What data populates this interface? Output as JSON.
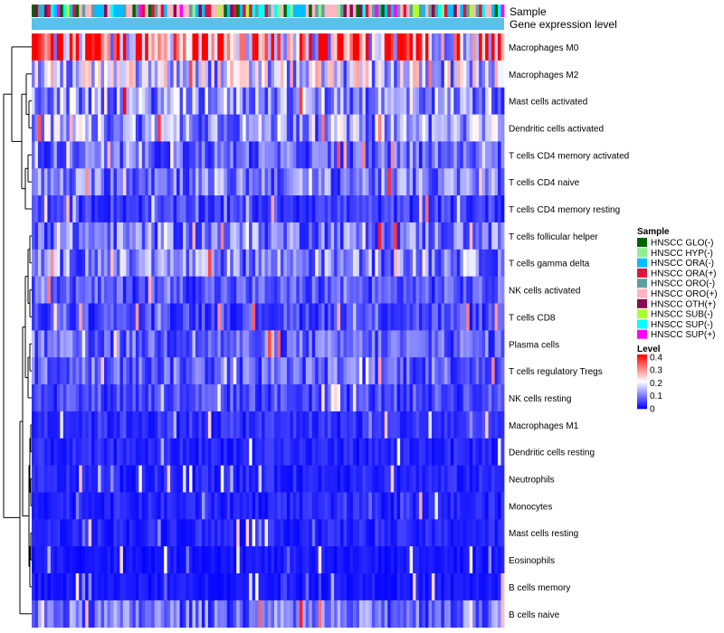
{
  "chart_data": {
    "type": "heatmap",
    "annotation_tracks": [
      "Sample",
      "Gene expression level"
    ],
    "rows": [
      "Macrophages M0",
      "Macrophages M2",
      "Mast cells activated",
      "Dendritic cells activated",
      "T cells CD4 memory activated",
      "T cells CD4 naive",
      "T cells CD4 memory resting",
      "T cells follicular helper",
      "T cells gamma delta",
      "NK cells activated",
      "T cells CD8",
      "Plasma cells",
      "T cells regulatory  Tregs",
      "NK cells resting",
      "Macrophages M1",
      "Dendritic cells resting",
      "Neutrophils",
      "Monocytes",
      "Mast cells resting",
      "Eosinophils",
      "B cells memory",
      "B cells naive"
    ],
    "row_mean_levels": [
      0.32,
      0.16,
      0.12,
      0.13,
      0.08,
      0.1,
      0.05,
      0.1,
      0.11,
      0.07,
      0.06,
      0.08,
      0.08,
      0.06,
      0.04,
      0.03,
      0.03,
      0.03,
      0.03,
      0.02,
      0.02,
      0.09
    ],
    "legend_sample": {
      "title": "Sample",
      "items": [
        {
          "label": "HNSCC GLO(-)",
          "color": "#006400"
        },
        {
          "label": "HNSCC HYP(-)",
          "color": "#90EE90"
        },
        {
          "label": "HNSCC ORA(-)",
          "color": "#00BFFF"
        },
        {
          "label": "HNSCC ORA(+)",
          "color": "#DC143C"
        },
        {
          "label": "HNSCC ORO(-)",
          "color": "#5F9EA0"
        },
        {
          "label": "HNSCC ORO(+)",
          "color": "#FFB6C1"
        },
        {
          "label": "HNSCC OTH(+)",
          "color": "#8B0A50"
        },
        {
          "label": "HNSCC SUB(-)",
          "color": "#ADFF2F"
        },
        {
          "label": "HNSCC SUP(-)",
          "color": "#00FFFF"
        },
        {
          "label": "HNSCC SUP(+)",
          "color": "#FF00FF"
        }
      ]
    },
    "legend_level": {
      "title": "Level",
      "ticks": [
        "0.4",
        "0.3",
        "0.2",
        "0.1",
        "0"
      ],
      "tick_values": [
        0.4,
        0.3,
        0.2,
        0.1,
        0
      ],
      "range": [
        0,
        0.42
      ],
      "colors": [
        "#0000FF",
        "#FFFFFF",
        "#FF0000"
      ]
    },
    "expression_track_color": "#5BC0EB"
  }
}
